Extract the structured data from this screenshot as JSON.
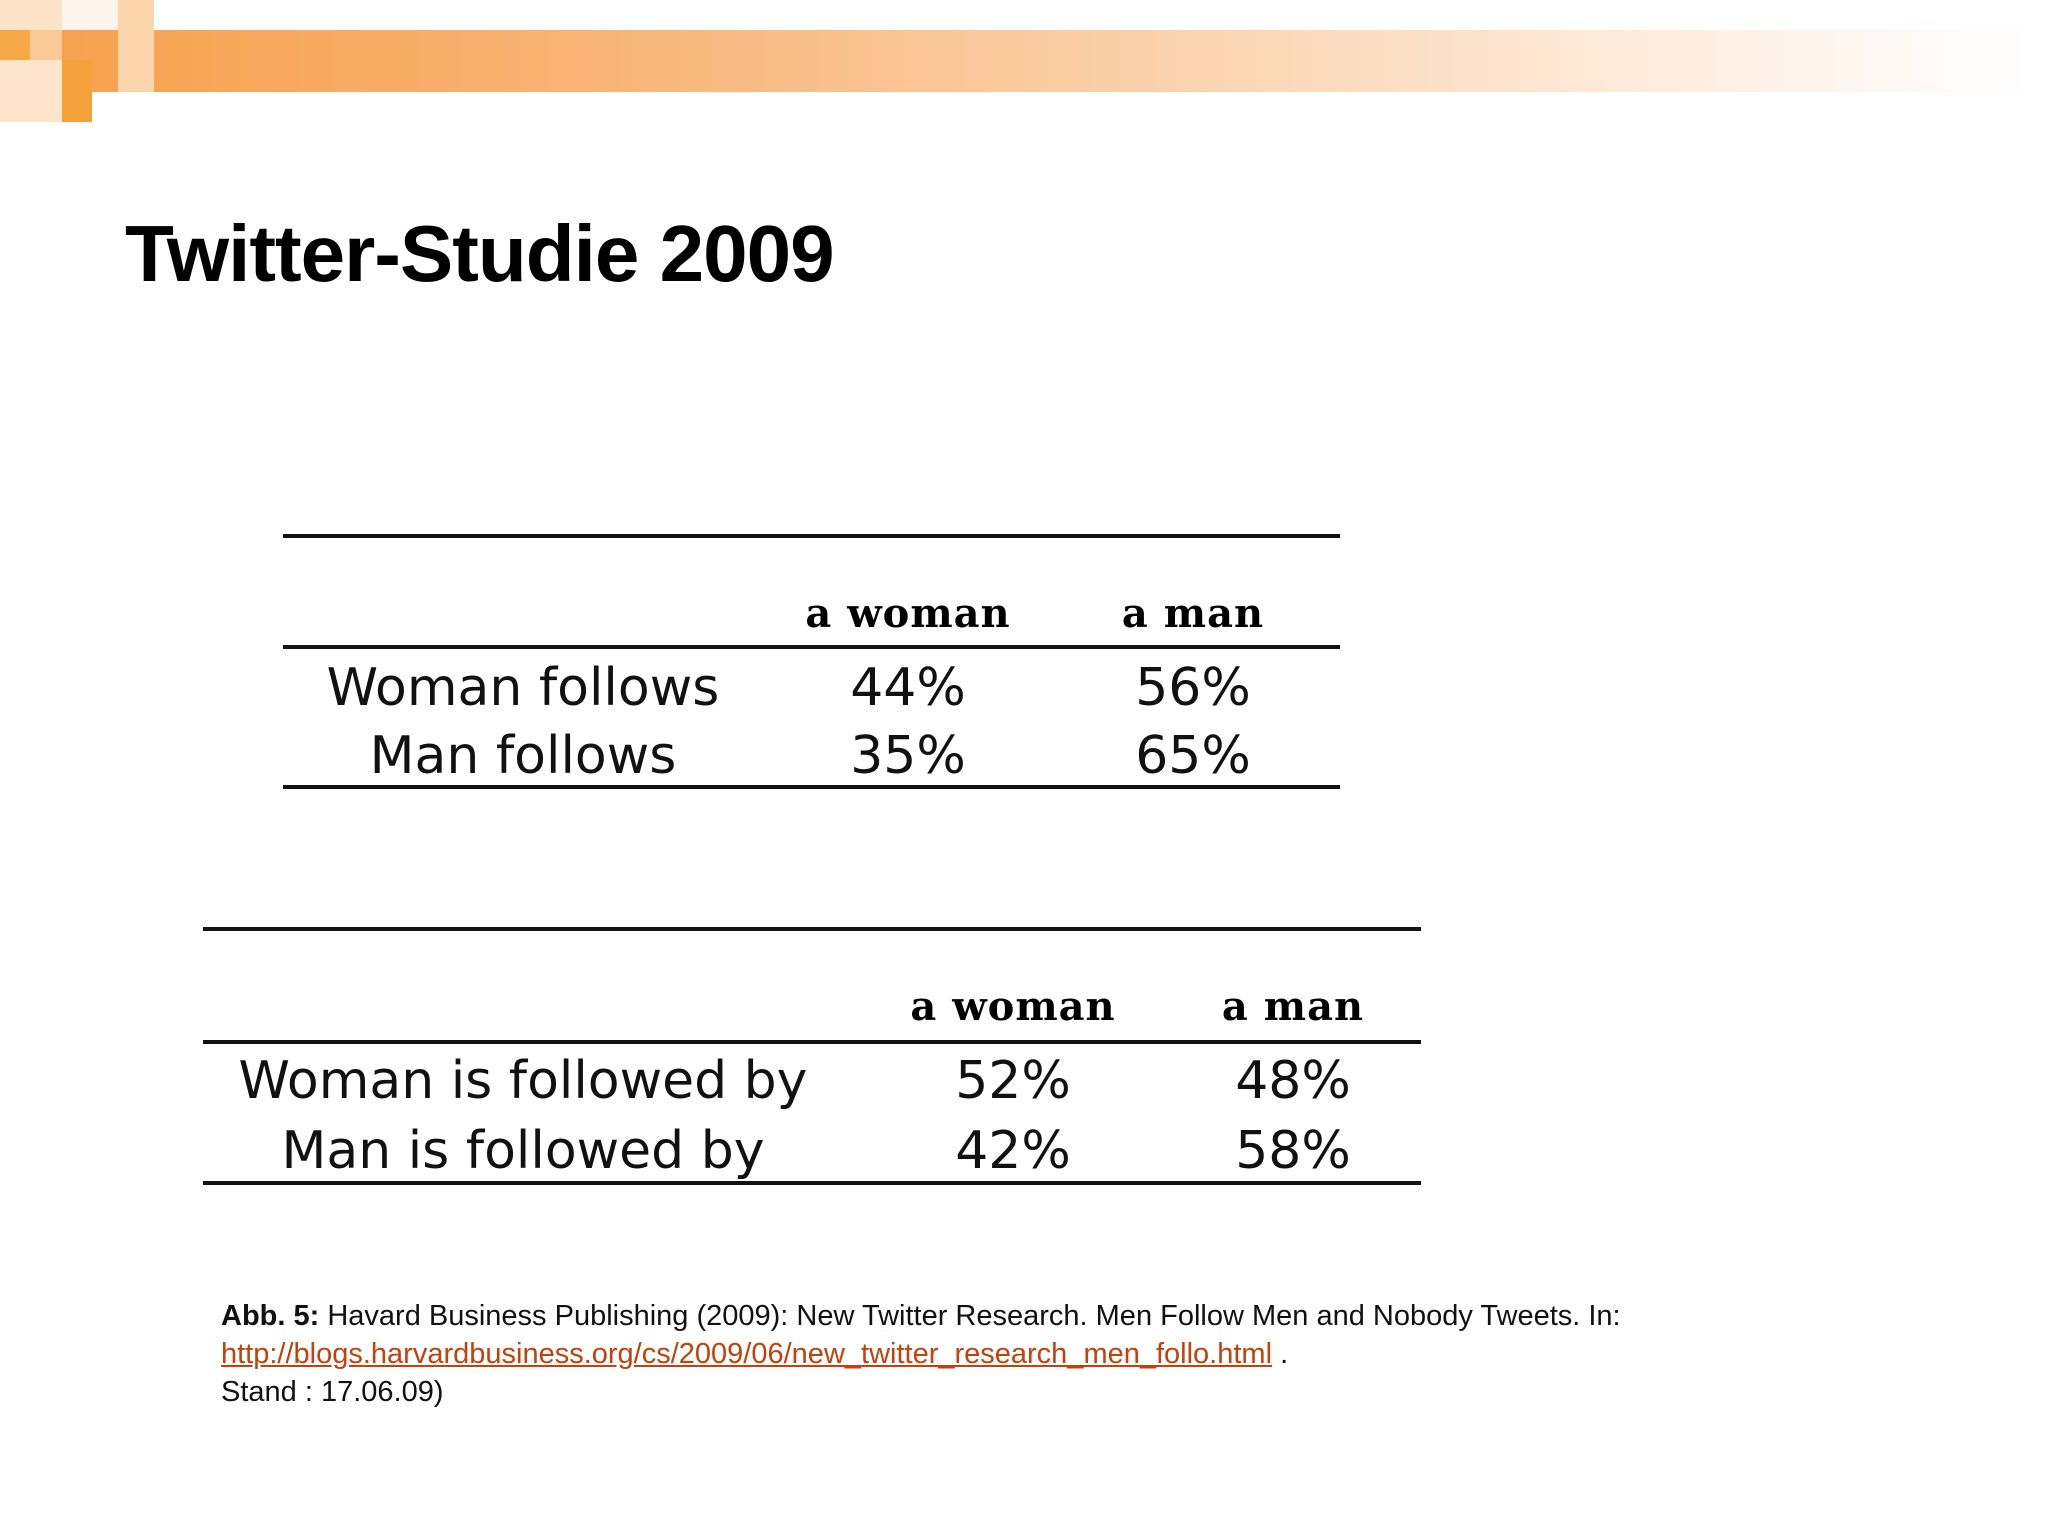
{
  "slide": {
    "title": "Twitter-Studie 2009"
  },
  "colors": {
    "accent_orange": "#f5a23a",
    "link_color": "#c2410c"
  },
  "table_follows": {
    "headers": [
      "a woman",
      "a man"
    ],
    "rows": [
      {
        "label": "Woman follows",
        "woman": "44%",
        "man": "56%"
      },
      {
        "label": "Man follows",
        "woman": "35%",
        "man": "65%"
      }
    ]
  },
  "table_followed_by": {
    "headers": [
      "a woman",
      "a man"
    ],
    "rows": [
      {
        "label": "Woman is followed by",
        "woman": "52%",
        "man": "48%"
      },
      {
        "label": "Man is followed by",
        "woman": "42%",
        "man": "58%"
      }
    ]
  },
  "caption": {
    "label": "Abb. 5:",
    "text1": " Havard Business Publishing (2009): New Twitter Research. Men Follow Men and Nobody Tweets. In: ",
    "link": "http://blogs.harvardbusiness.org/cs/2009/06/new_twitter_research_men_follo.html",
    "text2": " .",
    "stand": "Stand : 17.06.09)"
  }
}
